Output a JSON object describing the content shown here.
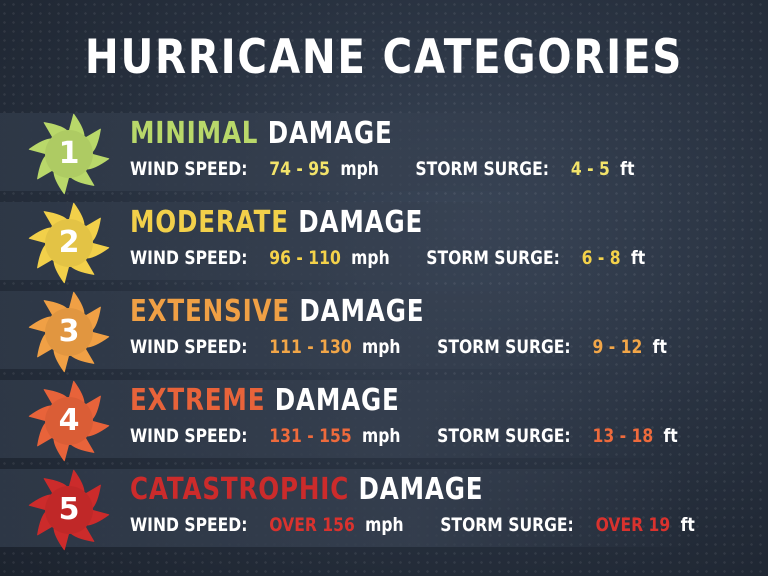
{
  "title": "HURRICANE CATEGORIES",
  "damage_word": "DAMAGE",
  "wind_label": "WIND SPEED:",
  "surge_label": "STORM SURGE:",
  "wind_unit": "mph",
  "surge_unit": "ft",
  "categories": [
    {
      "number": "1",
      "level": "MINIMAL",
      "wind": "74 - 95",
      "surge": "4 - 5",
      "color": "#b9d86a",
      "value_color": "#f2e36a"
    },
    {
      "number": "2",
      "level": "MODERATE",
      "wind": "96 - 110",
      "surge": "6 - 8",
      "color": "#f2d04a",
      "value_color": "#f4d24a"
    },
    {
      "number": "3",
      "level": "EXTENSIVE",
      "wind": "111 - 130",
      "surge": "9 - 12",
      "color": "#f0a045",
      "value_color": "#f2a648"
    },
    {
      "number": "4",
      "level": "EXTREME",
      "wind": "131 - 155",
      "surge": "13 - 18",
      "color": "#e8633a",
      "value_color": "#ee6a3c"
    },
    {
      "number": "5",
      "level": "CATASTROPHIC",
      "wind": "OVER 156",
      "surge": "OVER 19",
      "color": "#cc2b2b",
      "value_color": "#d9322e"
    }
  ]
}
